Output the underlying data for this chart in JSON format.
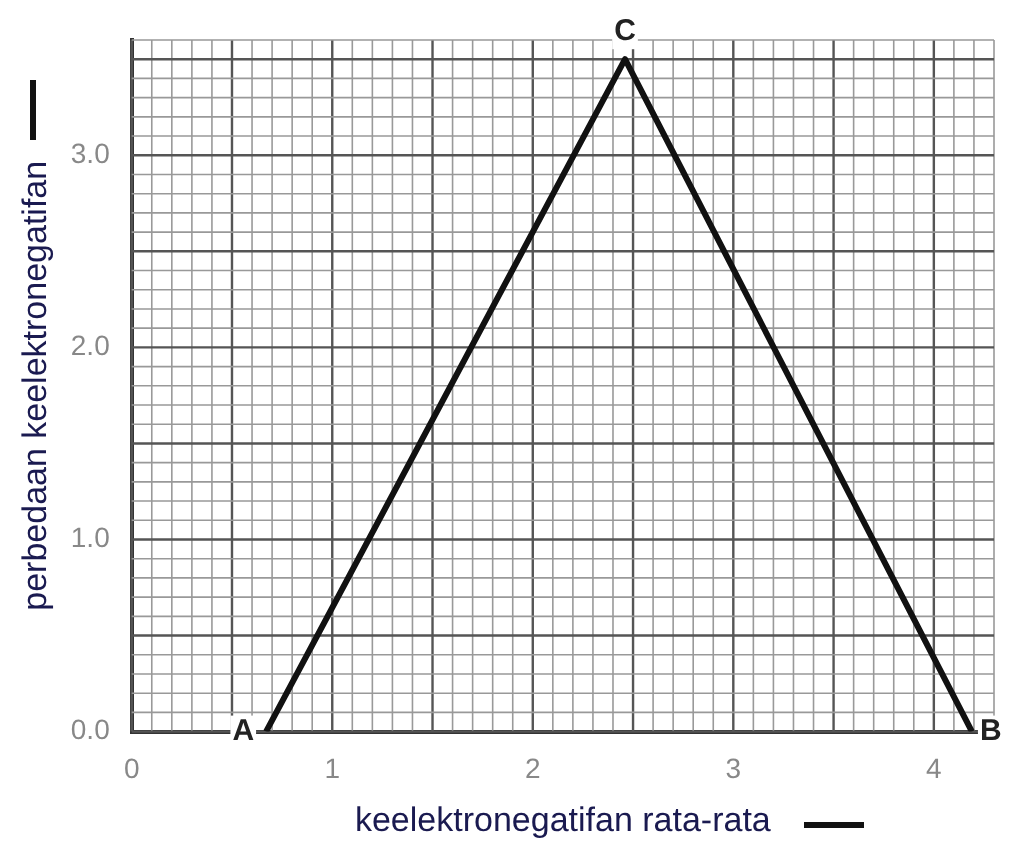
{
  "chart_data": {
    "type": "line",
    "xlabel": "keelektronegatifan rata-rata",
    "ylabel": "perbedaan keelektronegatifan",
    "x": [
      0.67,
      2.46,
      4.19
    ],
    "series": [
      {
        "color": "#111111",
        "values": [
          0,
          3.5,
          0
        ]
      }
    ],
    "xlim": [
      0,
      4.3
    ],
    "ylim": [
      0,
      3.6
    ],
    "xticks": [
      0,
      1,
      2,
      3,
      4
    ],
    "yticks": [
      {
        "value": 0,
        "label": "0.0"
      },
      {
        "value": 1,
        "label": "1.0"
      },
      {
        "value": 2,
        "label": "2.0"
      },
      {
        "value": 3,
        "label": "3.0"
      }
    ],
    "grid": true,
    "legend": false,
    "marker": "none",
    "line_style": "solid",
    "annotations": [
      {
        "text": "A",
        "x": 0.67,
        "y": 0
      },
      {
        "text": "C",
        "x": 2.46,
        "y": 3.5
      },
      {
        "text": "B",
        "x": 4.19,
        "y": 0
      }
    ]
  }
}
